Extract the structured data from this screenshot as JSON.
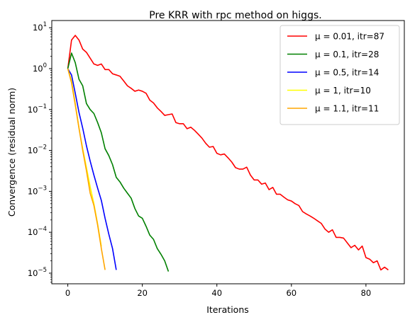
{
  "chart_data": {
    "type": "line",
    "title": "Pre KRR with rpc method on higgs.",
    "xlabel": "Iterations",
    "ylabel": "Convergence (residual norm)",
    "xlim": [
      -4.3,
      90.3
    ],
    "ylim": [
      5.5e-06,
      15
    ],
    "y_scale": "log",
    "grid": false,
    "legend_position": "top-right",
    "x_ticks": [
      0,
      20,
      40,
      60,
      80
    ],
    "x_tick_labels": [
      "0",
      "20",
      "40",
      "60",
      "80"
    ],
    "y_ticks": [
      1e-05,
      0.0001,
      0.001,
      0.01,
      0.1,
      1,
      10
    ],
    "y_tick_labels": [
      {
        "base": "10",
        "exp": "−5"
      },
      {
        "base": "10",
        "exp": "−4"
      },
      {
        "base": "10",
        "exp": "−3"
      },
      {
        "base": "10",
        "exp": "−2"
      },
      {
        "base": "10",
        "exp": "−1"
      },
      {
        "base": "10",
        "exp": "0"
      },
      {
        "base": "10",
        "exp": "1"
      }
    ],
    "series": [
      {
        "mu_text": "μ = 0.01",
        "itr_text": ", itr=87",
        "color": "#ff0000",
        "x_start": 0,
        "values": [
          1.0,
          5.0,
          6.5,
          5.0,
          3.0,
          2.5,
          1.8,
          1.3,
          1.2,
          1.3,
          0.95,
          0.95,
          0.75,
          0.7,
          0.65,
          0.5,
          0.38,
          0.33,
          0.28,
          0.3,
          0.28,
          0.25,
          0.17,
          0.145,
          0.11,
          0.09,
          0.072,
          0.075,
          0.078,
          0.048,
          0.045,
          0.045,
          0.034,
          0.037,
          0.031,
          0.025,
          0.02,
          0.015,
          0.012,
          0.0125,
          0.0085,
          0.0078,
          0.0082,
          0.0066,
          0.0052,
          0.0038,
          0.0035,
          0.0035,
          0.0039,
          0.0025,
          0.0019,
          0.0019,
          0.0015,
          0.0016,
          0.0011,
          0.00125,
          0.00085,
          0.00085,
          0.00072,
          0.00062,
          0.00058,
          0.0005,
          0.00045,
          0.00032,
          0.00028,
          0.00025,
          0.00022,
          0.00019,
          0.000165,
          0.00012,
          0.0001,
          0.000115,
          7.5e-05,
          7.5e-05,
          7.2e-05,
          5.5e-05,
          4.2e-05,
          4.8e-05,
          3.7e-05,
          4.6e-05,
          2.4e-05,
          2.2e-05,
          1.8e-05,
          2e-05,
          1.2e-05,
          1.4e-05,
          1.2e-05
        ]
      },
      {
        "mu_text": "μ = 0.1",
        "itr_text": ", itr=28",
        "color": "#008000",
        "x_start": 0,
        "values": [
          1.0,
          2.4,
          1.4,
          0.55,
          0.38,
          0.14,
          0.1,
          0.08,
          0.048,
          0.027,
          0.011,
          0.0075,
          0.0045,
          0.0022,
          0.0017,
          0.0012,
          0.0009,
          0.00068,
          0.00038,
          0.00025,
          0.00022,
          0.00014,
          8.5e-05,
          6.7e-05,
          4e-05,
          2.9e-05,
          2e-05,
          1.1e-05
        ]
      },
      {
        "mu_text": "μ = 0.5",
        "itr_text": ", itr=14",
        "color": "#0000ff",
        "x_start": 0,
        "values": [
          1.0,
          0.7,
          0.25,
          0.085,
          0.035,
          0.013,
          0.0055,
          0.0025,
          0.0012,
          0.0006,
          0.00022,
          9e-05,
          4e-05,
          1.2e-05
        ]
      },
      {
        "mu_text": "μ = 1",
        "itr_text": ", itr=10",
        "color": "#ffff00",
        "x_start": 0,
        "values": [
          1.0,
          0.5,
          0.14,
          0.035,
          0.011,
          0.0038,
          0.0013,
          0.0005,
          0.00016,
          4.5e-05
        ]
      },
      {
        "mu_text": "μ = 1.1",
        "itr_text": ", itr=11",
        "color": "#ffa500",
        "x_start": 0,
        "values": [
          1.0,
          0.45,
          0.13,
          0.035,
          0.01,
          0.0032,
          0.0009,
          0.00045,
          0.00015,
          4e-05,
          1.2e-05
        ]
      }
    ]
  }
}
